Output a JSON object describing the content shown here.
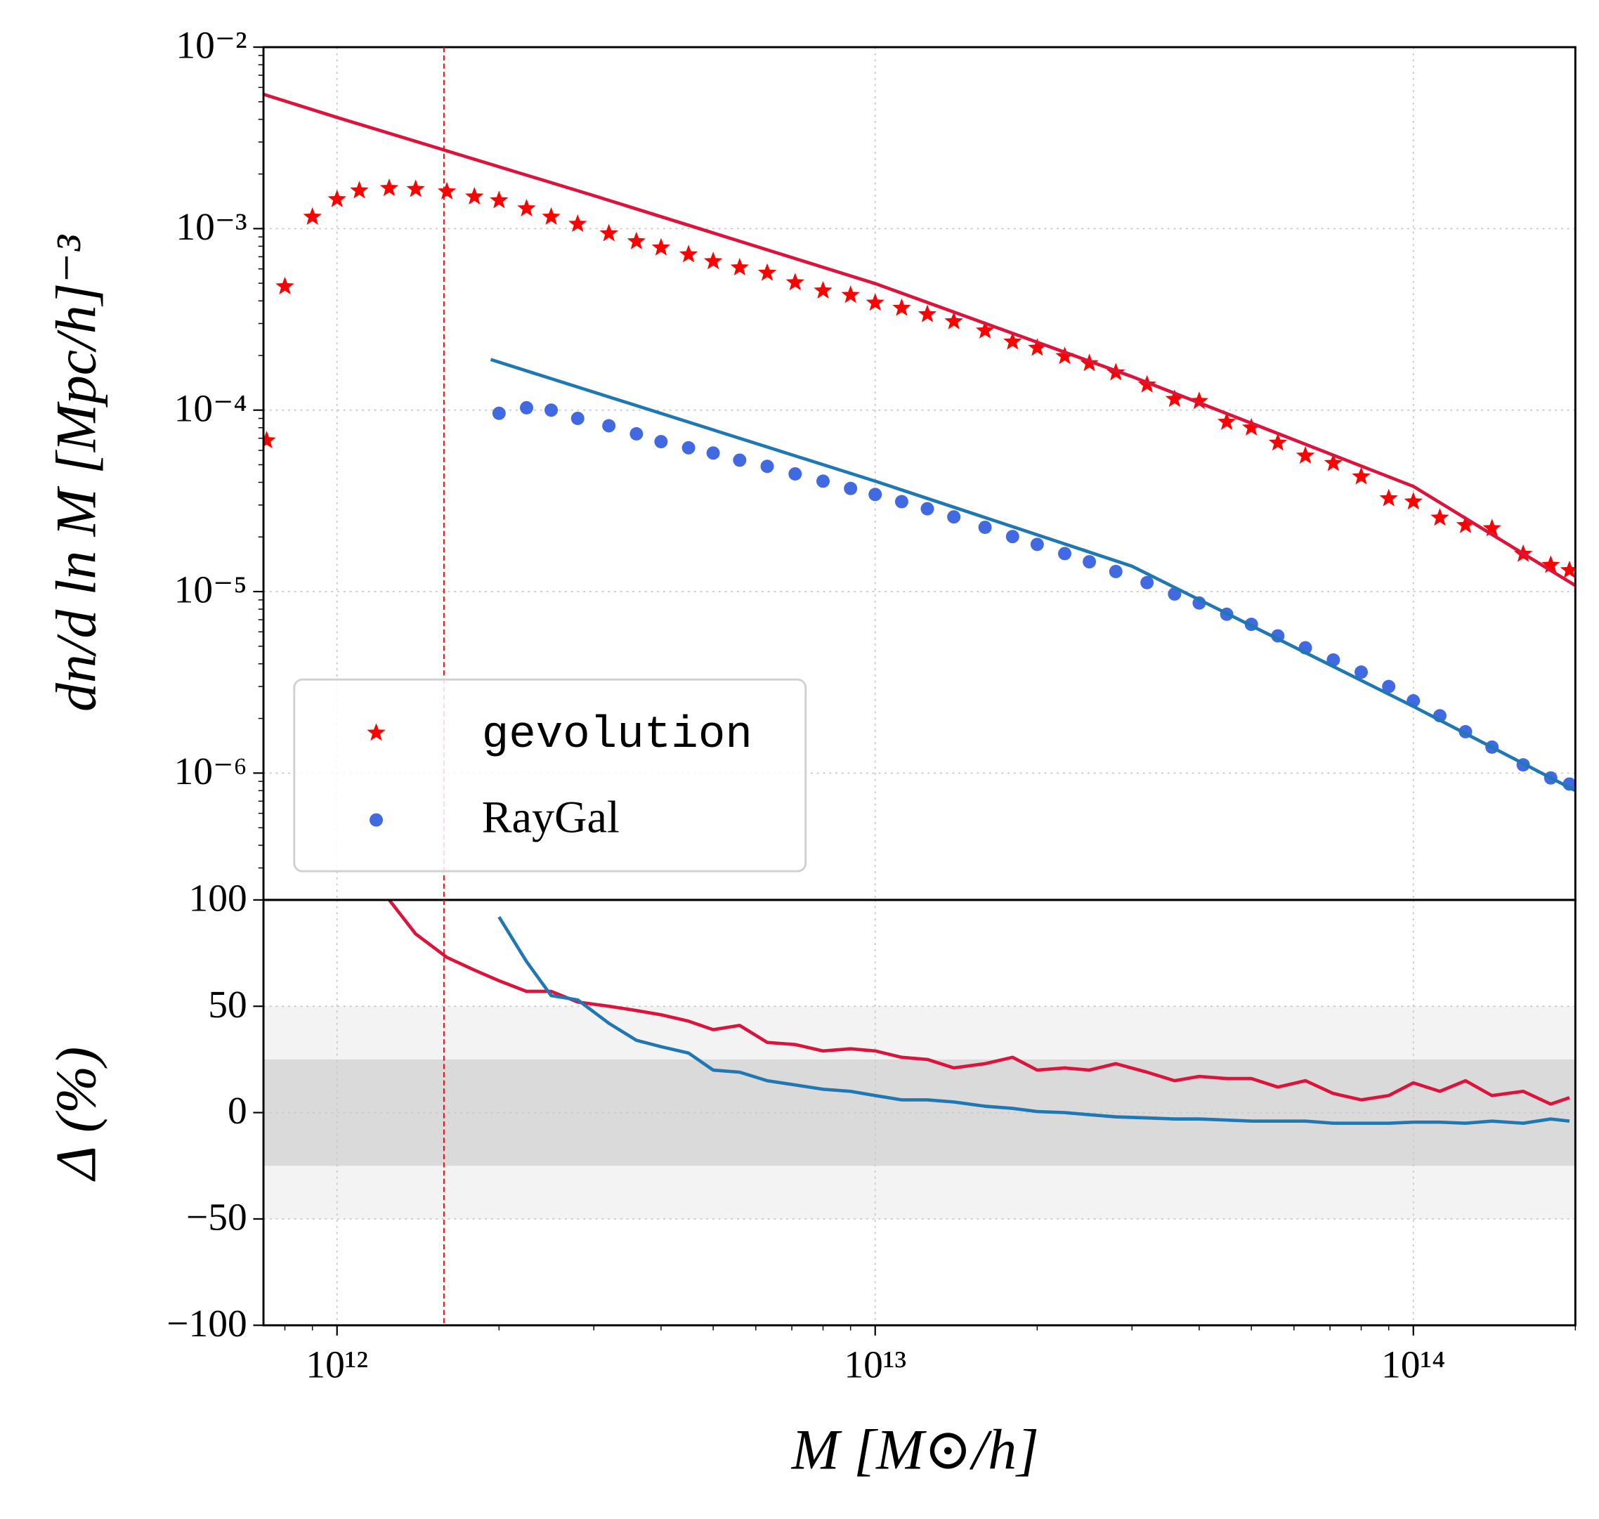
{
  "chart_data": [
    {
      "type": "scatter",
      "ylabel": "dn/d ln M [Mpc/h]⁻³",
      "xlim": [
        730000000000.0,
        200000000000000.0
      ],
      "ylim": [
        2e-07,
        0.01
      ],
      "xscale": "log",
      "yscale": "log",
      "grid": true,
      "minor_ticks": true,
      "legend": "lower left",
      "vline": 1580000000000.0,
      "vline_color": "#ff0000",
      "yticks": [
        {
          "value": 0.01,
          "label": "10⁻²"
        },
        {
          "value": 0.001,
          "label": "10⁻³"
        },
        {
          "value": 0.0001,
          "label": "10⁻⁴"
        },
        {
          "value": 1e-05,
          "label": "10⁻⁵"
        },
        {
          "value": 1e-06,
          "label": "10⁻⁶"
        }
      ],
      "series": [
        {
          "name": "gevolution",
          "marker": "star",
          "color": "#ff0000",
          "x": [
            740000000000.0,
            800000000000.0,
            900000000000.0,
            1000000000000.0,
            1100000000000.0,
            1250000000000.0,
            1400000000000.0,
            1600000000000.0,
            1800000000000.0,
            2000000000000.0,
            2250000000000.0,
            2500000000000.0,
            2800000000000.0,
            3200000000000.0,
            3600000000000.0,
            4000000000000.0,
            4500000000000.0,
            5000000000000.0,
            5600000000000.0,
            6300000000000.0,
            7100000000000.0,
            8000000000000.0,
            9000000000000.0,
            10000000000000.0,
            11200000000000.0,
            12500000000000.0,
            14000000000000.0,
            16000000000000.0,
            18000000000000.0,
            20000000000000.0,
            22500000000000.0,
            25000000000000.0,
            28000000000000.0,
            32000000000000.0,
            36000000000000.0,
            40000000000000.0,
            45000000000000.0,
            50000000000000.0,
            56000000000000.0,
            63000000000000.0,
            71000000000000.0,
            80000000000000.0,
            90000000000000.0,
            100000000000000.0,
            112000000000000.0,
            125000000000000.0,
            140000000000000.0,
            160000000000000.0,
            180000000000000.0,
            195000000000000.0
          ],
          "values": [
            6.8e-05,
            0.00048,
            0.00116,
            0.00145,
            0.00162,
            0.00167,
            0.00165,
            0.0016,
            0.0015,
            0.00143,
            0.00129,
            0.00116,
            0.00106,
            0.00094,
            0.00085,
            0.000785,
            0.00072,
            0.00066,
            0.00061,
            0.00057,
            0.000505,
            0.000455,
            0.00043,
            0.00039,
            0.000365,
            0.000337,
            0.000308,
            0.000274,
            0.000238,
            0.00022,
            0.000198,
            0.000181,
            0.000161,
            0.000138,
            0.000115,
            0.000112,
            8.6e-05,
            8e-05,
            6.6e-05,
            5.6e-05,
            5.1e-05,
            4.3e-05,
            3.26e-05,
            3.13e-05,
            2.55e-05,
            2.32e-05,
            2.23e-05,
            1.61e-05,
            1.4e-05,
            1.31e-05
          ]
        },
        {
          "name": "RayGal",
          "marker": "circle",
          "color": "#4169e1",
          "x": [
            2000000000000.0,
            2250000000000.0,
            2500000000000.0,
            2800000000000.0,
            3200000000000.0,
            3600000000000.0,
            4000000000000.0,
            4500000000000.0,
            5000000000000.0,
            5600000000000.0,
            6300000000000.0,
            7100000000000.0,
            8000000000000.0,
            9000000000000.0,
            10000000000000.0,
            11200000000000.0,
            12500000000000.0,
            14000000000000.0,
            16000000000000.0,
            18000000000000.0,
            20000000000000.0,
            22500000000000.0,
            25000000000000.0,
            28000000000000.0,
            32000000000000.0,
            36000000000000.0,
            40000000000000.0,
            45000000000000.0,
            50000000000000.0,
            56000000000000.0,
            63000000000000.0,
            71000000000000.0,
            80000000000000.0,
            90000000000000.0,
            100000000000000.0,
            112000000000000.0,
            125000000000000.0,
            140000000000000.0,
            160000000000000.0,
            180000000000000.0,
            195000000000000.0
          ],
          "values": [
            9.6e-05,
            0.000103,
            0.0001,
            9e-05,
            8.2e-05,
            7.4e-05,
            6.7e-05,
            6.2e-05,
            5.8e-05,
            5.3e-05,
            4.9e-05,
            4.45e-05,
            4.06e-05,
            3.7e-05,
            3.43e-05,
            3.13e-05,
            2.86e-05,
            2.58e-05,
            2.26e-05,
            2.01e-05,
            1.82e-05,
            1.62e-05,
            1.46e-05,
            1.29e-05,
            1.12e-05,
            9.7e-06,
            8.65e-06,
            7.5e-06,
            6.6e-06,
            5.7e-06,
            4.9e-06,
            4.2e-06,
            3.6e-06,
            3e-06,
            2.5e-06,
            2.07e-06,
            1.69e-06,
            1.39e-06,
            1.11e-06,
            9.4e-07,
            8.7e-07
          ]
        },
        {
          "marker": "line",
          "color": "#dc143c",
          "x": [
            730000000000.0,
            1000000000000.0,
            3000000000000.0,
            10000000000000.0,
            30000000000000.0,
            100000000000000.0,
            200000000000000.0
          ],
          "values": [
            0.0055,
            0.0041,
            0.00152,
            0.000498,
            0.000153,
            3.8e-05,
            1.08e-05
          ]
        },
        {
          "marker": "line",
          "color": "#1f77b4",
          "x": [
            1930000000000.0,
            10000000000000.0,
            30000000000000.0,
            100000000000000.0,
            200000000000000.0
          ],
          "values": [
            0.00019,
            4.06e-05,
            1.38e-05,
            2.33e-06,
            8e-07
          ]
        }
      ]
    },
    {
      "type": "line",
      "xlabel": "M [M⊙/h]",
      "ylabel": "Δ (%)",
      "xlim": [
        730000000000.0,
        200000000000000.0
      ],
      "ylim": [
        -100,
        100
      ],
      "xscale": "log",
      "grid": true,
      "minor_ticks": true,
      "xticks": [
        {
          "value": 1000000000000.0,
          "label": "10¹²"
        },
        {
          "value": 10000000000000.0,
          "label": "10¹³"
        },
        {
          "value": 100000000000000.0,
          "label": "10¹⁴"
        }
      ],
      "yticks": [
        {
          "value": -100,
          "label": "−100"
        },
        {
          "value": -50,
          "label": "−50"
        },
        0,
        50,
        100
      ],
      "bands": [
        {
          "range": [
            -50,
            50
          ],
          "color": "#f3f3f3"
        },
        {
          "range": [
            -25,
            25
          ],
          "color": "#dadada"
        }
      ],
      "series": [
        {
          "color": "#dc143c",
          "x": [
            1250000000000.0,
            1400000000000.0,
            1600000000000.0,
            1800000000000.0,
            2000000000000.0,
            2250000000000.0,
            2500000000000.0,
            2800000000000.0,
            3200000000000.0,
            3600000000000.0,
            4000000000000.0,
            4500000000000.0,
            5000000000000.0,
            5600000000000.0,
            6300000000000.0,
            7100000000000.0,
            8000000000000.0,
            9000000000000.0,
            10000000000000.0,
            11200000000000.0,
            12500000000000.0,
            14000000000000.0,
            16000000000000.0,
            18000000000000.0,
            20000000000000.0,
            22500000000000.0,
            25000000000000.0,
            28000000000000.0,
            32000000000000.0,
            36000000000000.0,
            40000000000000.0,
            45000000000000.0,
            50000000000000.0,
            56000000000000.0,
            63000000000000.0,
            71000000000000.0,
            80000000000000.0,
            90000000000000.0,
            100000000000000.0,
            112000000000000.0,
            125000000000000.0,
            140000000000000.0,
            160000000000000.0,
            180000000000000.0,
            195000000000000.0
          ],
          "values": [
            100,
            84,
            73,
            67,
            62,
            57,
            57,
            52,
            50,
            48,
            46,
            43,
            39,
            41,
            33,
            32,
            29,
            30,
            29,
            26,
            25,
            21,
            23,
            26,
            20,
            21,
            20,
            23,
            19,
            15,
            17,
            16,
            16,
            12,
            15,
            9,
            6,
            8,
            14,
            10,
            15,
            8,
            10,
            4,
            7
          ]
        },
        {
          "color": "#1f77b4",
          "x": [
            2000000000000.0,
            2250000000000.0,
            2500000000000.0,
            2800000000000.0,
            3200000000000.0,
            3600000000000.0,
            4000000000000.0,
            4500000000000.0,
            5000000000000.0,
            5600000000000.0,
            6300000000000.0,
            7100000000000.0,
            8000000000000.0,
            9000000000000.0,
            10000000000000.0,
            11200000000000.0,
            12500000000000.0,
            14000000000000.0,
            16000000000000.0,
            18000000000000.0,
            20000000000000.0,
            22500000000000.0,
            25000000000000.0,
            28000000000000.0,
            32000000000000.0,
            36000000000000.0,
            40000000000000.0,
            45000000000000.0,
            50000000000000.0,
            56000000000000.0,
            63000000000000.0,
            71000000000000.0,
            80000000000000.0,
            90000000000000.0,
            100000000000000.0,
            112000000000000.0,
            125000000000000.0,
            140000000000000.0,
            160000000000000.0,
            180000000000000.0,
            195000000000000.0
          ],
          "values": [
            92,
            71,
            55,
            53,
            42,
            34,
            31,
            28,
            20,
            19,
            15,
            13,
            11,
            10,
            8,
            6,
            6,
            5,
            3,
            2,
            0.5,
            0,
            -1,
            -2,
            -2.5,
            -3,
            -3,
            -3.5,
            -4,
            -4,
            -4,
            -5,
            -5,
            -5,
            -4.5,
            -4.5,
            -5,
            -4,
            -5,
            -3,
            -4
          ]
        }
      ]
    }
  ]
}
